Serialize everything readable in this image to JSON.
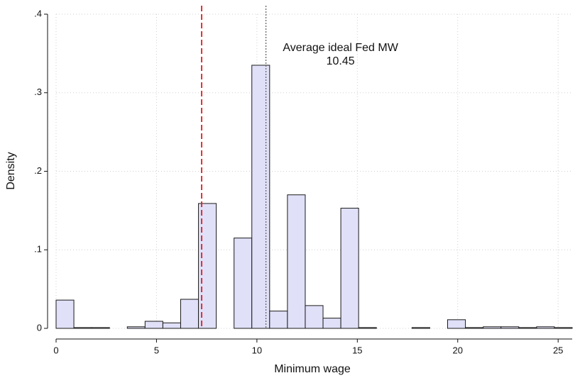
{
  "chart_data": {
    "type": "histogram",
    "x_label": "Minimum wage",
    "y_label": "Density",
    "bins": [
      0,
      0.886,
      1.772,
      2.659,
      3.545,
      4.431,
      5.317,
      6.203,
      7.09,
      7.976,
      8.862,
      9.748,
      10.634,
      11.521,
      12.407,
      13.293,
      14.179,
      15.065,
      15.952,
      16.838,
      17.724,
      18.61,
      19.496,
      20.383,
      21.269,
      22.155,
      23.041,
      23.927,
      24.814,
      25.7
    ],
    "values": [
      0.036,
      0.001,
      0.001,
      0,
      0.002,
      0.009,
      0.007,
      0.037,
      0.159,
      0,
      0.115,
      0.335,
      0.022,
      0.17,
      0.029,
      0.013,
      0.153,
      0.001,
      0,
      0,
      0.001,
      0,
      0.011,
      0.001,
      0.002,
      0.002,
      0.001,
      0.002,
      0.001
    ],
    "color": "#e0e0f8",
    "edge_color": "#1a1a1a",
    "xlim": [
      0,
      25.7
    ],
    "ylim": [
      0,
      0.4
    ],
    "xticks": [
      0,
      5,
      10,
      15,
      20,
      25
    ],
    "yticks": [
      0,
      {
        "value": 0.1,
        "label": ".1"
      },
      {
        "value": 0.2,
        "label": ".2"
      },
      {
        "value": 0.3,
        "label": ".3"
      },
      {
        "value": 0.4,
        "label": ".4"
      }
    ],
    "grid": true,
    "vlines": [
      {
        "value": 7.25,
        "color": "#e41a1c",
        "style": "dashed"
      },
      {
        "value": 10.45,
        "color": "#666666",
        "style": "dotted",
        "label": "Average ideal Fed MW"
      }
    ]
  }
}
